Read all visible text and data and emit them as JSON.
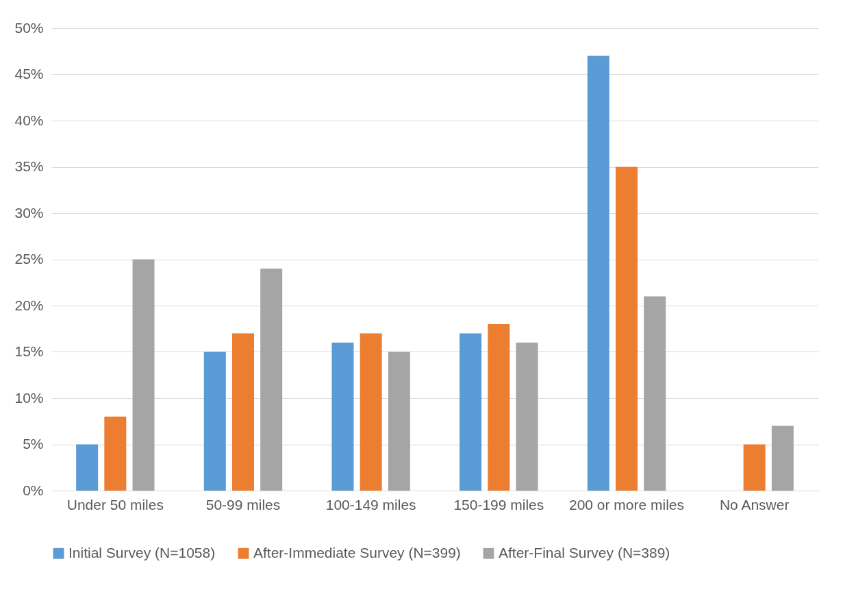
{
  "chart_data": {
    "type": "bar",
    "categories": [
      "Under 50 miles",
      "50-99 miles",
      "100-149 miles",
      "150-199 miles",
      "200 or more miles",
      "No Answer"
    ],
    "series": [
      {
        "name": "Initial Survey (N=1058)",
        "color": "#5b9bd5",
        "values": [
          5,
          15,
          16,
          17,
          47,
          0
        ]
      },
      {
        "name": "After-Immediate Survey (N=399)",
        "color": "#ed7d31",
        "values": [
          8,
          17,
          17,
          18,
          35,
          5
        ]
      },
      {
        "name": "After-Final Survey (N=389)",
        "color": "#a5a5a5",
        "values": [
          25,
          24,
          15,
          16,
          21,
          7
        ]
      }
    ],
    "ylim": [
      0,
      50
    ],
    "yticks": [
      {
        "value": 0,
        "label": "0%"
      },
      {
        "value": 5,
        "label": "5%"
      },
      {
        "value": 10,
        "label": "10%"
      },
      {
        "value": 15,
        "label": "15%"
      },
      {
        "value": 20,
        "label": "20%"
      },
      {
        "value": 25,
        "label": "25%"
      },
      {
        "value": 30,
        "label": "30%"
      },
      {
        "value": 35,
        "label": "35%"
      },
      {
        "value": 40,
        "label": "40%"
      },
      {
        "value": 45,
        "label": "45%"
      },
      {
        "value": 50,
        "label": "50%"
      }
    ],
    "grid": "y",
    "legend": "bottom"
  }
}
